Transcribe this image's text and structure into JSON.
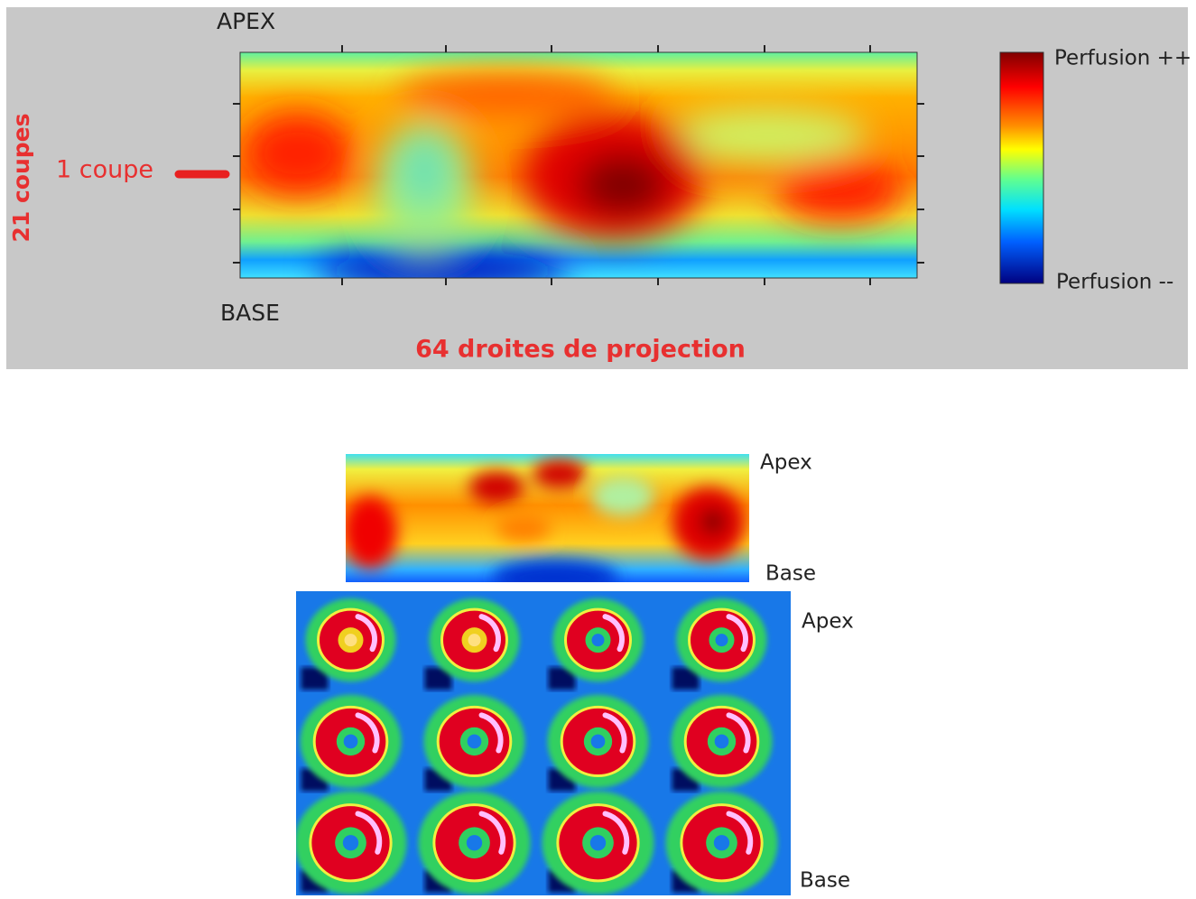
{
  "top_panel": {
    "apex_label": "APEX",
    "base_label": "BASE",
    "rows_label": "21 coupes",
    "row_marker_label": "1 coupe",
    "columns_label": "64 droites de projection",
    "colorbar_high": "Perfusion ++",
    "colorbar_low": "Perfusion --"
  },
  "bottom_panel": {
    "map_apex_label": "Apex",
    "map_base_label": "Base",
    "slices_apex_label": "Apex",
    "slices_base_label": "Base"
  }
}
